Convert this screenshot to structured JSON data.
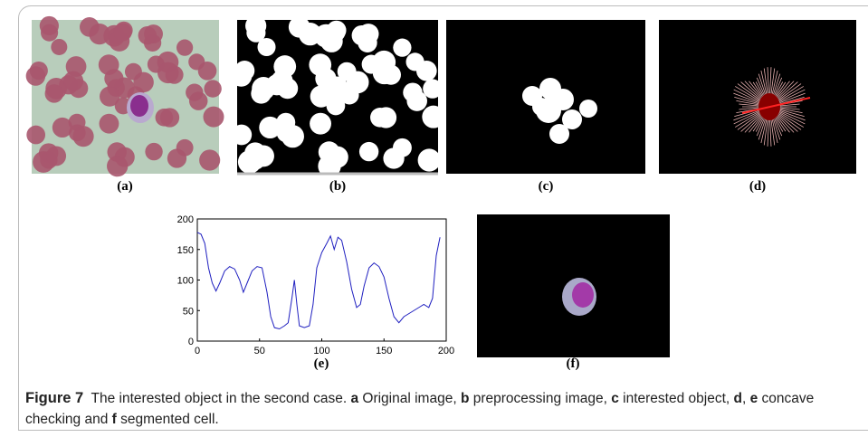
{
  "panels": [
    "(a)",
    "(b)",
    "(c)",
    "(d)",
    "(e)",
    "(f)"
  ],
  "chart_data": {
    "type": "line",
    "color": "#2020c0",
    "x": [
      0,
      3,
      6,
      9,
      12,
      15,
      18,
      22,
      26,
      30,
      34,
      37,
      40,
      44,
      48,
      52,
      56,
      59,
      62,
      66,
      70,
      73,
      76,
      78,
      80,
      82,
      86,
      90,
      93,
      96,
      100,
      104,
      107,
      110,
      113,
      116,
      120,
      124,
      128,
      131,
      134,
      138,
      142,
      146,
      150,
      154,
      158,
      162,
      166,
      170,
      174,
      178,
      182,
      186,
      189,
      192,
      195
    ],
    "values": [
      178,
      175,
      160,
      120,
      95,
      82,
      95,
      115,
      122,
      118,
      100,
      80,
      95,
      115,
      122,
      120,
      80,
      40,
      22,
      20,
      25,
      30,
      70,
      100,
      60,
      25,
      22,
      25,
      60,
      120,
      145,
      160,
      172,
      150,
      170,
      165,
      130,
      85,
      55,
      60,
      90,
      120,
      128,
      122,
      105,
      70,
      40,
      30,
      40,
      45,
      50,
      55,
      60,
      55,
      70,
      140,
      170
    ],
    "xlim": [
      0,
      200
    ],
    "ylim": [
      0,
      200
    ],
    "xticks": [
      0,
      50,
      100,
      150,
      200
    ],
    "yticks": [
      0,
      50,
      100,
      150,
      200
    ]
  },
  "caption": [
    {
      "text": "Figure 7",
      "bold": true
    },
    {
      "text": "  The interested object in the second case. ",
      "bold": false
    },
    {
      "text": "a",
      "bold": true
    },
    {
      "text": " Original image, ",
      "bold": false
    },
    {
      "text": "b",
      "bold": true
    },
    {
      "text": " preprocessing image, ",
      "bold": false
    },
    {
      "text": "c",
      "bold": true
    },
    {
      "text": " interested object, ",
      "bold": false
    },
    {
      "text": "d",
      "bold": true
    },
    {
      "text": ", ",
      "bold": false
    },
    {
      "text": "e",
      "bold": true
    },
    {
      "text": " concave checking and ",
      "bold": false
    },
    {
      "text": "f",
      "bold": true
    },
    {
      "text": " segmented cell.",
      "bold": false
    }
  ]
}
